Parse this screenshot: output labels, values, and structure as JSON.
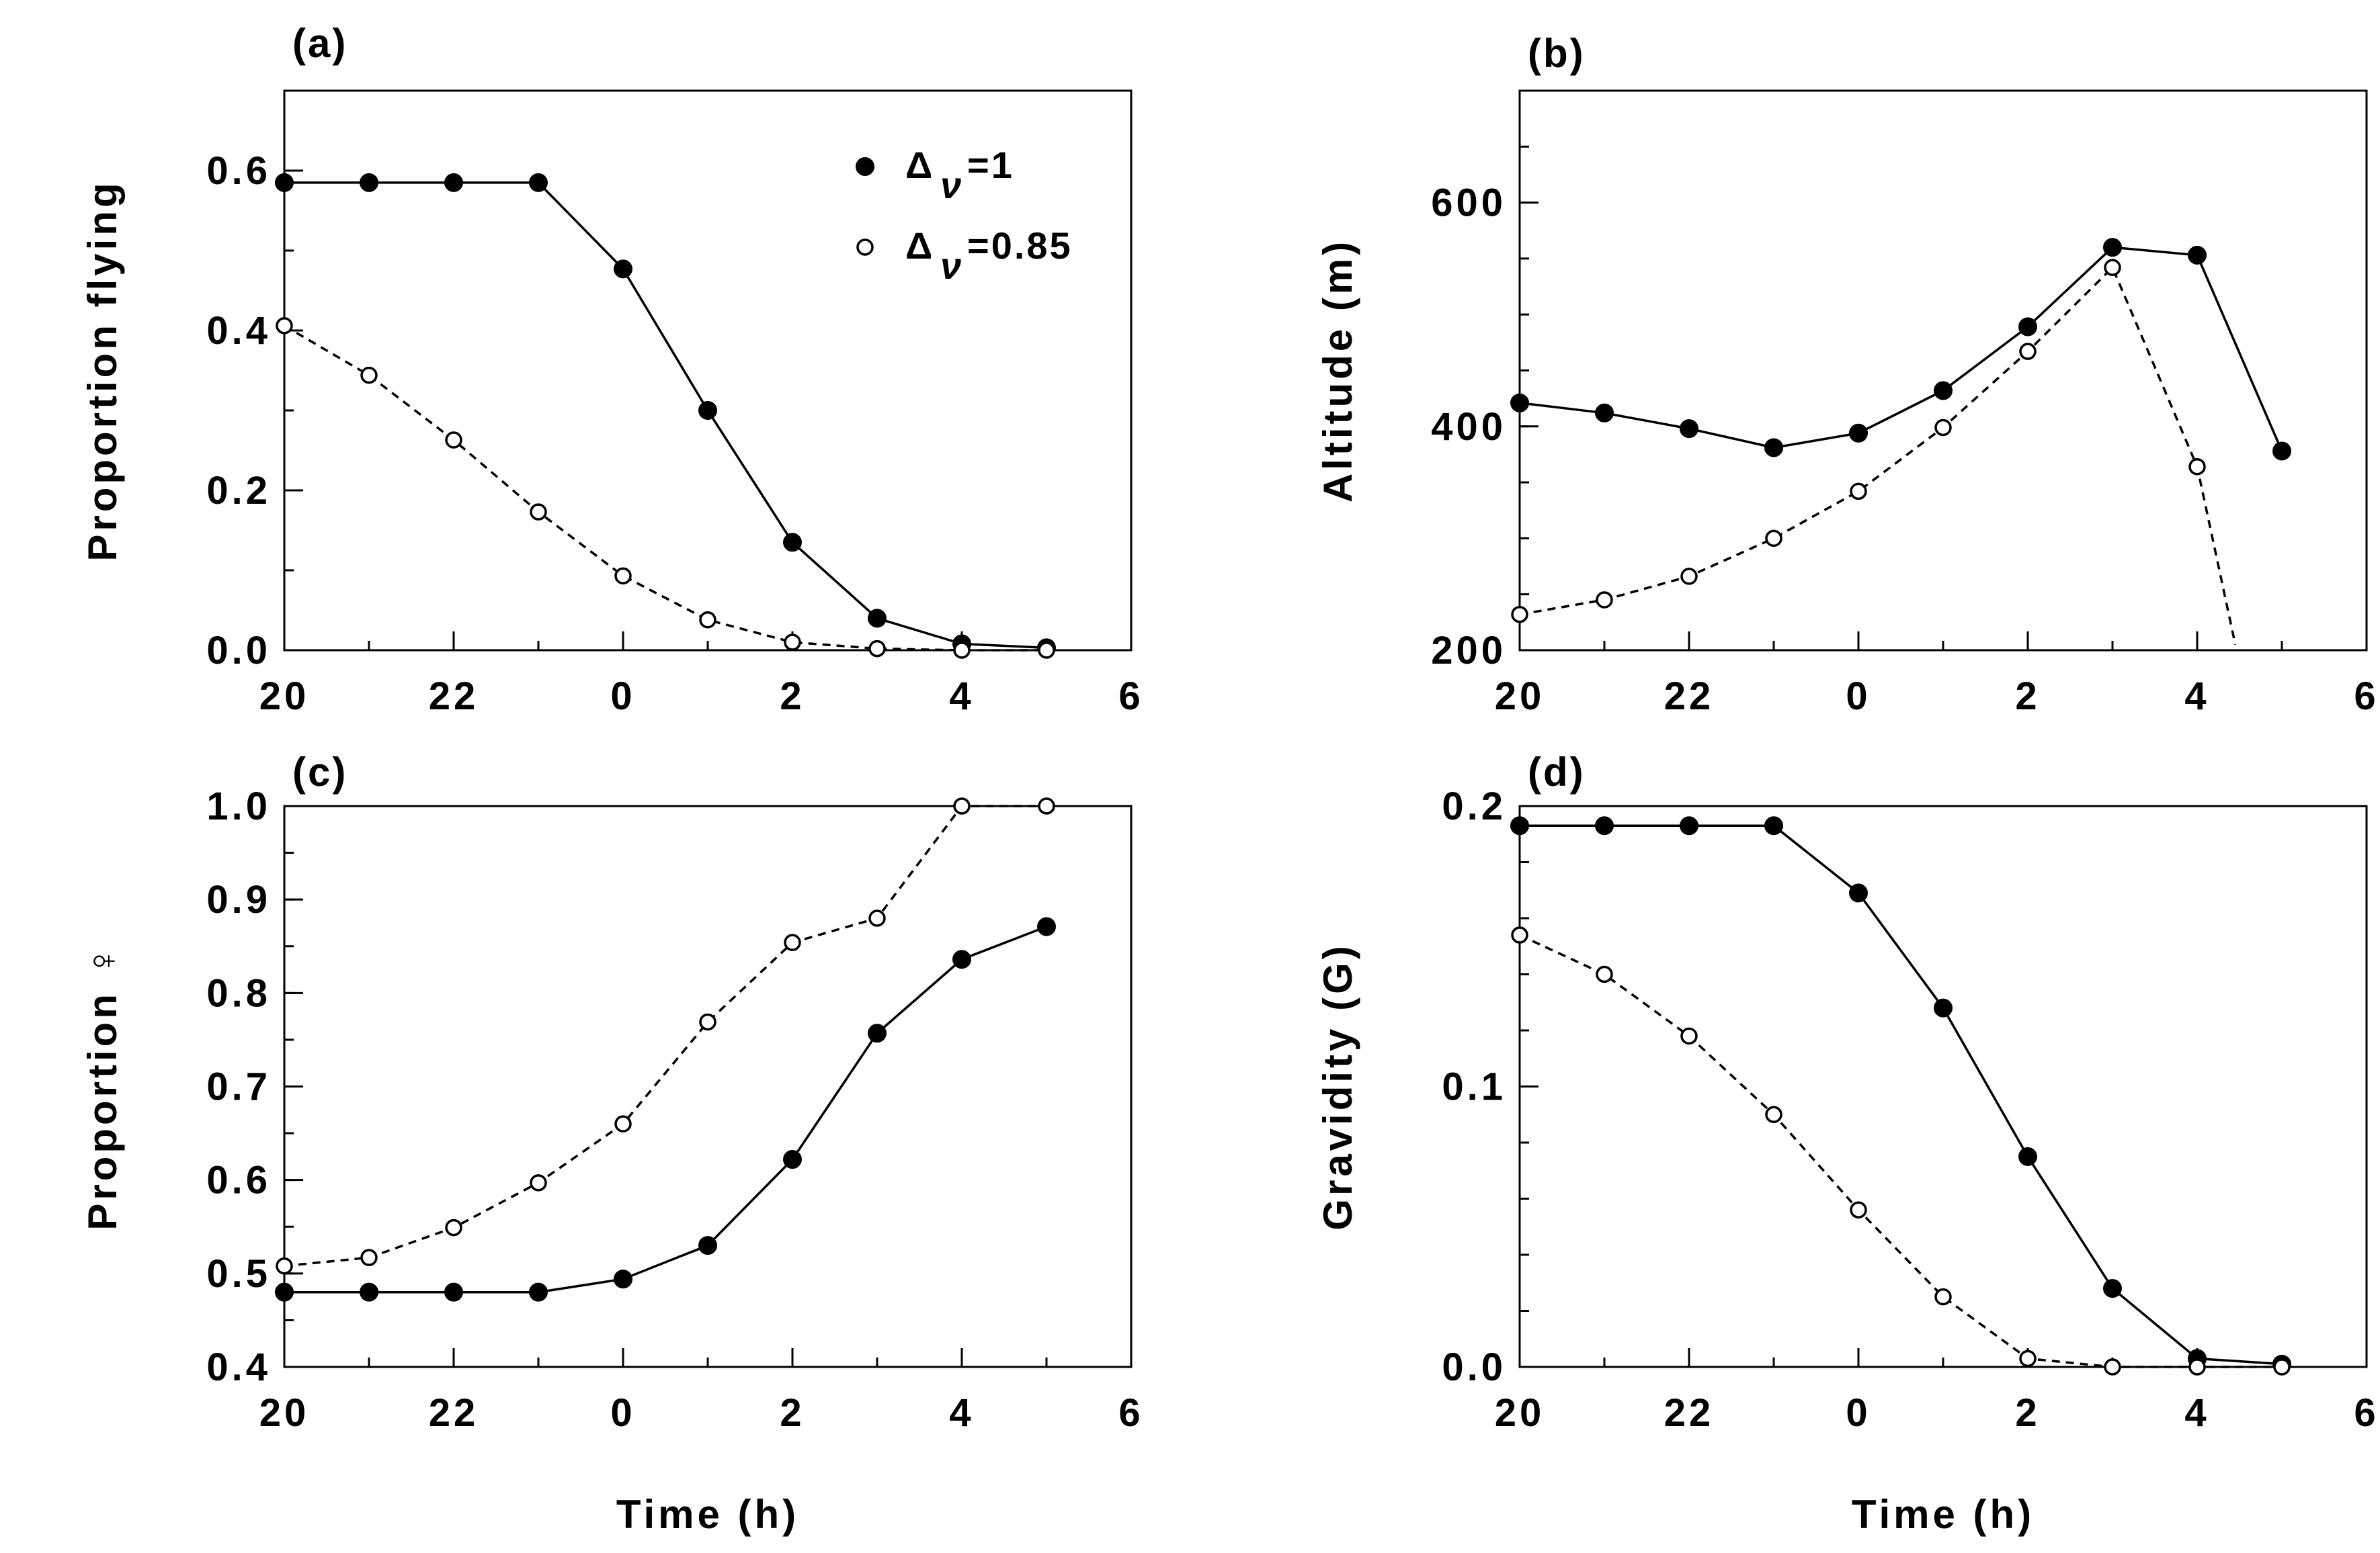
{
  "chart_data": [
    {
      "panel": "(a)",
      "type": "line",
      "title": "",
      "xlabel": "",
      "ylabel": "Proportion flying",
      "x": [
        20,
        21,
        22,
        23,
        24,
        25,
        26,
        27,
        28,
        29
      ],
      "xlim": [
        20,
        30
      ],
      "x_ticks": [
        20,
        22,
        24,
        26,
        28,
        30
      ],
      "x_tick_labels": [
        "20",
        "22",
        "0",
        "2",
        "4",
        "6"
      ],
      "ylim": [
        0,
        0.7
      ],
      "y_ticks": [
        0,
        0.2,
        0.4,
        0.6
      ],
      "y_tick_labels": [
        "0.0",
        "0.2",
        "0.4",
        "0.6"
      ],
      "y_minor_step": 0.1,
      "series": [
        {
          "name": "Δν=1",
          "marker": "filled",
          "line": "solid",
          "values": [
            0.585,
            0.585,
            0.585,
            0.585,
            0.477,
            0.3,
            0.135,
            0.04,
            0.008,
            0.003
          ]
        },
        {
          "name": "Δν=0.85",
          "marker": "open",
          "line": "dashed",
          "values": [
            0.406,
            0.344,
            0.263,
            0.173,
            0.093,
            0.038,
            0.01,
            0.002,
            0.0,
            0.0
          ]
        }
      ],
      "legend": {
        "position": "top-right",
        "entries": [
          {
            "symbol": "Δ",
            "subscript": "ν",
            "value": "=1"
          },
          {
            "symbol": "Δ",
            "subscript": "ν",
            "value": "=0.85"
          }
        ]
      }
    },
    {
      "panel": "(b)",
      "type": "line",
      "title": "",
      "xlabel": "",
      "ylabel": "Altitude (m)",
      "x": [
        20,
        21,
        22,
        23,
        24,
        25,
        26,
        27,
        28,
        29
      ],
      "xlim": [
        20,
        30
      ],
      "x_ticks": [
        20,
        22,
        24,
        26,
        28,
        30
      ],
      "x_tick_labels": [
        "20",
        "22",
        "0",
        "2",
        "4",
        "6"
      ],
      "ylim": [
        200,
        700
      ],
      "y_ticks": [
        200,
        400,
        600
      ],
      "y_tick_labels": [
        "200",
        "400",
        "600"
      ],
      "y_minor_step": 50,
      "series": [
        {
          "name": "Δν=1",
          "marker": "filled",
          "line": "solid",
          "values": [
            421,
            412,
            398,
            381,
            394,
            432,
            489,
            560,
            553,
            378
          ]
        },
        {
          "name": "Δν=0.85",
          "marker": "open",
          "line": "dashed",
          "x": [
            20,
            21,
            22,
            23,
            24,
            25,
            26,
            27,
            28,
            28.45
          ],
          "values": [
            232,
            245,
            266,
            300,
            342,
            399,
            467,
            542,
            364,
            205
          ],
          "marker_count": 9
        }
      ]
    },
    {
      "panel": "(c)",
      "type": "line",
      "title": "",
      "xlabel": "Time (h)",
      "ylabel": "Proportion ♀",
      "x": [
        20,
        21,
        22,
        23,
        24,
        25,
        26,
        27,
        28,
        29
      ],
      "xlim": [
        20,
        30
      ],
      "x_ticks": [
        20,
        22,
        24,
        26,
        28,
        30
      ],
      "x_tick_labels": [
        "20",
        "22",
        "0",
        "2",
        "4",
        "6"
      ],
      "ylim": [
        0.4,
        1.0
      ],
      "y_ticks": [
        0.4,
        0.5,
        0.6,
        0.7,
        0.8,
        0.9,
        1.0
      ],
      "y_tick_labels": [
        "0.4",
        "0.5",
        "0.6",
        "0.7",
        "0.8",
        "0.9",
        "1.0"
      ],
      "y_minor_step": 0.05,
      "series": [
        {
          "name": "Δν=1",
          "marker": "filled",
          "line": "solid",
          "values": [
            0.48,
            0.48,
            0.48,
            0.48,
            0.494,
            0.53,
            0.622,
            0.757,
            0.836,
            0.871
          ]
        },
        {
          "name": "Δν=0.85",
          "marker": "open",
          "line": "dashed",
          "values": [
            0.508,
            0.517,
            0.549,
            0.597,
            0.66,
            0.769,
            0.854,
            0.88,
            1.0,
            1.0
          ]
        }
      ]
    },
    {
      "panel": "(d)",
      "type": "line",
      "title": "",
      "xlabel": "Time (h)",
      "ylabel": "Gravidity (G)",
      "x": [
        20,
        21,
        22,
        23,
        24,
        25,
        26,
        27,
        28,
        29
      ],
      "xlim": [
        20,
        30
      ],
      "x_ticks": [
        20,
        22,
        24,
        26,
        28,
        30
      ],
      "x_tick_labels": [
        "20",
        "22",
        "0",
        "2",
        "4",
        "6"
      ],
      "ylim": [
        0,
        0.2
      ],
      "y_ticks": [
        0,
        0.1,
        0.2
      ],
      "y_tick_labels": [
        "0.0",
        "0.1",
        "0.2"
      ],
      "y_minor_step": 0.02,
      "series": [
        {
          "name": "Δν=1",
          "marker": "filled",
          "line": "solid",
          "values": [
            0.193,
            0.193,
            0.193,
            0.193,
            0.169,
            0.128,
            0.075,
            0.028,
            0.003,
            0.001
          ]
        },
        {
          "name": "Δν=0.85",
          "marker": "open",
          "line": "dashed",
          "values": [
            0.154,
            0.14,
            0.118,
            0.09,
            0.056,
            0.025,
            0.003,
            0.0,
            0.0,
            0.0
          ]
        }
      ]
    }
  ]
}
